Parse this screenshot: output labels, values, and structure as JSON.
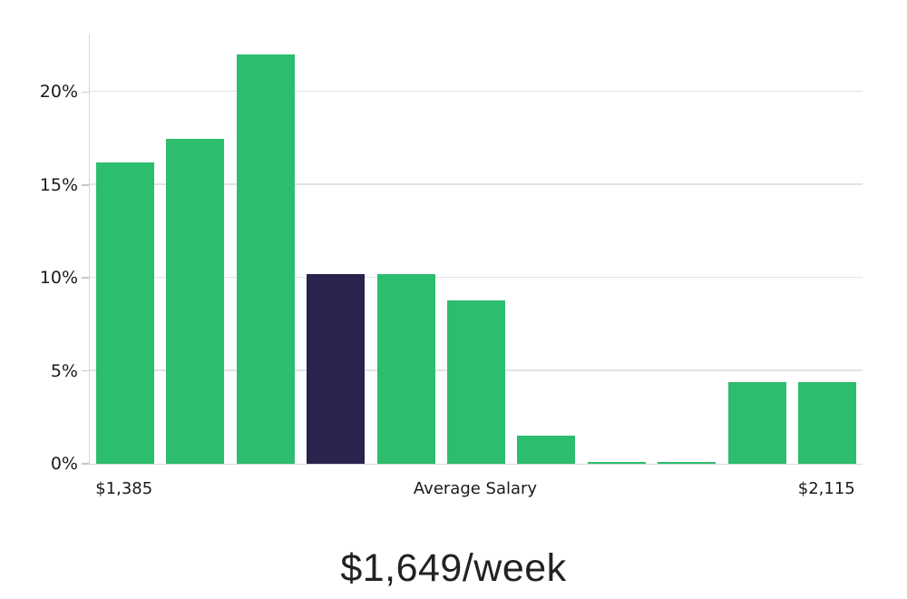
{
  "chart_data": {
    "type": "bar",
    "title": "$1,649/week",
    "values": [
      16.2,
      17.5,
      22.0,
      10.2,
      10.2,
      8.8,
      1.5,
      0.1,
      0.1,
      4.4,
      4.4
    ],
    "highlighted_index": 3,
    "y_ticks": [
      0,
      5,
      10,
      15,
      20
    ],
    "y_tick_labels": [
      "0%",
      "5%",
      "10%",
      "15%",
      "20%"
    ],
    "ylim": [
      0,
      23
    ],
    "x_tick_labels": [
      {
        "text": "$1,385",
        "anchor": "first-bar"
      },
      {
        "text": "Average Salary",
        "anchor": "center"
      },
      {
        "text": "$2,115",
        "anchor": "last-bar"
      }
    ],
    "xlabel": "",
    "ylabel": "",
    "grid": "horizontal",
    "legend": "none",
    "colors": {
      "bar": "#2dbd6e",
      "highlighted_bar": "#29234d",
      "gridline": "#e3e3e3",
      "axis_line": "#d8d8d8",
      "tick_mark": "#c9c9c9",
      "tick_text": "#1a1a1a",
      "title_text": "#222222"
    }
  }
}
